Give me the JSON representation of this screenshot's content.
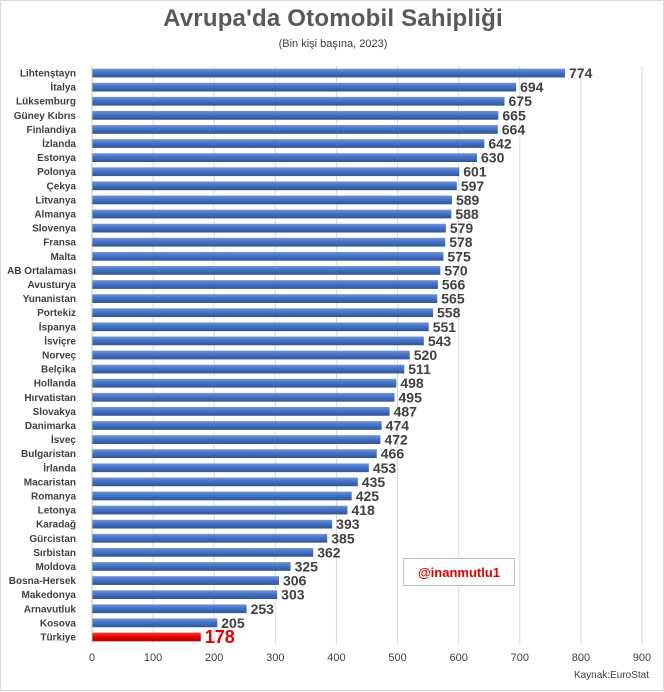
{
  "chart_data": {
    "type": "bar",
    "orientation": "horizontal",
    "title": "Avrupa'da Otomobil Sahipliği",
    "subtitle": "(Bin kişi başına, 2023)",
    "categories": [
      "Lihtenştayn",
      "İtalya",
      "Lüksemburg",
      "Güney Kıbrıs",
      "Finlandiya",
      "İzlanda",
      "Estonya",
      "Polonya",
      "Çekya",
      "Litvanya",
      "Almanya",
      "Slovenya",
      "Fransa",
      "Malta",
      "AB Ortalaması",
      "Avusturya",
      "Yunanistan",
      "Portekiz",
      "İspanya",
      "İsviçre",
      "Norveç",
      "Belçika",
      "Hollanda",
      "Hırvatistan",
      "Slovakya",
      "Danimarka",
      "İsveç",
      "Bulgaristan",
      "İrlanda",
      "Macaristan",
      "Romanya",
      "Letonya",
      "Karadağ",
      "Gürcistan",
      "Sırbistan",
      "Moldova",
      "Bosna-Hersek",
      "Makedonya",
      "Arnavutluk",
      "Kosova",
      "Türkiye"
    ],
    "values": [
      774,
      694,
      675,
      665,
      664,
      642,
      630,
      601,
      597,
      589,
      588,
      579,
      578,
      575,
      570,
      566,
      565,
      558,
      551,
      543,
      520,
      511,
      498,
      495,
      487,
      474,
      472,
      466,
      453,
      435,
      425,
      418,
      393,
      385,
      362,
      325,
      306,
      303,
      253,
      205,
      178
    ],
    "highlight": {
      "category": "Türkiye",
      "color": "#e00000"
    },
    "bar_color": "#4472c4",
    "xlim": [
      0,
      900
    ],
    "xticks": [
      0,
      100,
      200,
      300,
      400,
      500,
      600,
      700,
      800,
      900
    ],
    "grid": "vertical",
    "legend": "none"
  },
  "watermark": "@inanmutlu1",
  "source": "Kaynak:EuroStat"
}
